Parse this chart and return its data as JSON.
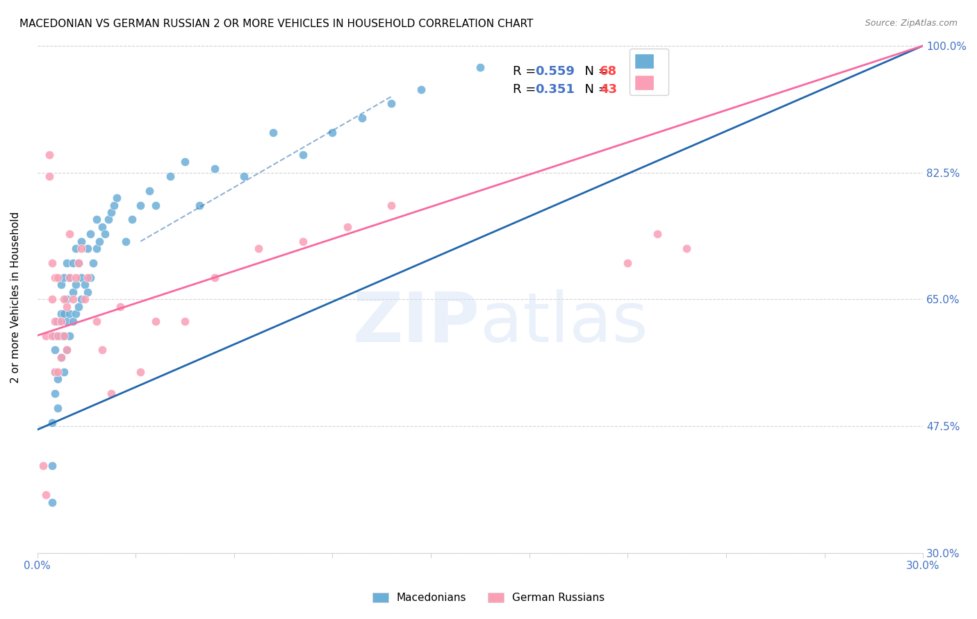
{
  "title": "MACEDONIAN VS GERMAN RUSSIAN 2 OR MORE VEHICLES IN HOUSEHOLD CORRELATION CHART",
  "source": "Source: ZipAtlas.com",
  "ylabel": "2 or more Vehicles in Household",
  "xlabel": "",
  "xlim": [
    0.0,
    0.3
  ],
  "ylim": [
    0.3,
    1.005
  ],
  "xtick_labels": [
    "0.0%",
    "",
    "",
    "",
    "",
    "",
    "",
    "",
    "",
    "30.0%"
  ],
  "ytick_labels": [
    "30.0%",
    "47.5%",
    "65.0%",
    "82.5%",
    "100.0%"
  ],
  "ytick_positions": [
    0.3,
    0.475,
    0.65,
    0.825,
    1.0
  ],
  "legend_r1": "R = 0.559",
  "legend_n1": "N = 68",
  "legend_r2": "R = 0.351",
  "legend_n2": "N = 43",
  "blue_color": "#6baed6",
  "pink_color": "#fa9fb5",
  "blue_line_color": "#2166ac",
  "pink_line_color": "#f768a1",
  "watermark": "ZIPatlas",
  "macedonians_x": [
    0.005,
    0.005,
    0.005,
    0.006,
    0.006,
    0.006,
    0.006,
    0.007,
    0.007,
    0.007,
    0.008,
    0.008,
    0.008,
    0.008,
    0.009,
    0.009,
    0.009,
    0.009,
    0.01,
    0.01,
    0.01,
    0.01,
    0.011,
    0.011,
    0.011,
    0.012,
    0.012,
    0.012,
    0.013,
    0.013,
    0.013,
    0.014,
    0.014,
    0.015,
    0.015,
    0.015,
    0.016,
    0.017,
    0.017,
    0.018,
    0.018,
    0.019,
    0.02,
    0.02,
    0.021,
    0.022,
    0.023,
    0.024,
    0.025,
    0.026,
    0.027,
    0.03,
    0.032,
    0.035,
    0.038,
    0.04,
    0.045,
    0.05,
    0.055,
    0.06,
    0.07,
    0.08,
    0.09,
    0.1,
    0.11,
    0.12,
    0.13,
    0.15
  ],
  "macedonians_y": [
    0.37,
    0.42,
    0.48,
    0.52,
    0.55,
    0.58,
    0.6,
    0.5,
    0.54,
    0.62,
    0.57,
    0.6,
    0.63,
    0.67,
    0.55,
    0.6,
    0.63,
    0.68,
    0.58,
    0.62,
    0.65,
    0.7,
    0.6,
    0.63,
    0.68,
    0.62,
    0.66,
    0.7,
    0.63,
    0.67,
    0.72,
    0.64,
    0.7,
    0.65,
    0.68,
    0.73,
    0.67,
    0.66,
    0.72,
    0.68,
    0.74,
    0.7,
    0.72,
    0.76,
    0.73,
    0.75,
    0.74,
    0.76,
    0.77,
    0.78,
    0.79,
    0.73,
    0.76,
    0.78,
    0.8,
    0.78,
    0.82,
    0.84,
    0.78,
    0.83,
    0.82,
    0.88,
    0.85,
    0.88,
    0.9,
    0.92,
    0.94,
    0.97
  ],
  "german_russian_x": [
    0.002,
    0.003,
    0.003,
    0.004,
    0.004,
    0.005,
    0.005,
    0.005,
    0.006,
    0.006,
    0.006,
    0.007,
    0.007,
    0.007,
    0.008,
    0.008,
    0.009,
    0.009,
    0.01,
    0.01,
    0.011,
    0.011,
    0.012,
    0.013,
    0.014,
    0.015,
    0.016,
    0.017,
    0.02,
    0.022,
    0.025,
    0.028,
    0.035,
    0.04,
    0.05,
    0.06,
    0.075,
    0.09,
    0.105,
    0.12,
    0.2,
    0.21,
    0.22
  ],
  "german_russian_y": [
    0.42,
    0.6,
    0.38,
    0.82,
    0.85,
    0.6,
    0.65,
    0.7,
    0.55,
    0.62,
    0.68,
    0.55,
    0.6,
    0.68,
    0.57,
    0.62,
    0.6,
    0.65,
    0.58,
    0.64,
    0.68,
    0.74,
    0.65,
    0.68,
    0.7,
    0.72,
    0.65,
    0.68,
    0.62,
    0.58,
    0.52,
    0.64,
    0.55,
    0.62,
    0.62,
    0.68,
    0.72,
    0.73,
    0.75,
    0.78,
    0.7,
    0.74,
    0.72
  ],
  "blue_trendline_x": [
    0.0,
    0.3
  ],
  "blue_trendline_y": [
    0.47,
    1.0
  ],
  "pink_trendline_x": [
    0.0,
    0.3
  ],
  "pink_trendline_y": [
    0.6,
    1.0
  ]
}
